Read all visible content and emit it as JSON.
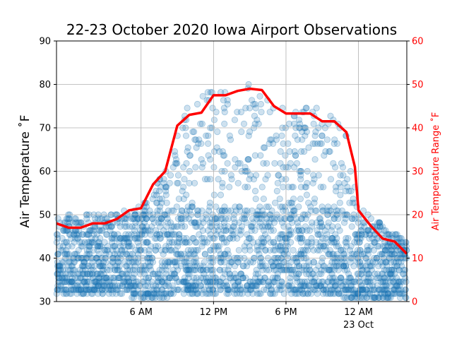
{
  "chart_data": {
    "type": "scatter",
    "title": "22-23 October 2020 Iowa Airport Observations",
    "ylabel": "Air Temperature $^\\circ$F",
    "ylabel_display": "Air Temperature ˚F",
    "y2label": "Air Temperature Range ˚F",
    "ylim": [
      30,
      90
    ],
    "y2lim": [
      0,
      60
    ],
    "yticks": [
      30,
      40,
      50,
      60,
      70,
      80,
      90
    ],
    "y2ticks": [
      0,
      10,
      20,
      30,
      40,
      50,
      60
    ],
    "xlim_hours": [
      0,
      29
    ],
    "xticks": [
      {
        "hour": 7,
        "label": "6 AM"
      },
      {
        "hour": 13,
        "label": "12 PM"
      },
      {
        "hour": 19,
        "label": "6 PM"
      },
      {
        "hour": 25,
        "label": "12 AM",
        "sublabel": "23 Oct"
      }
    ],
    "grid": true,
    "colors": {
      "scatter": "#1f77b4",
      "range_line": "#ff0000",
      "y2_axis": "#ff0000"
    },
    "range_series": {
      "name": "Air Temperature Range",
      "x": [
        0,
        1,
        2,
        3,
        4,
        5,
        6,
        7,
        8,
        9,
        10,
        11,
        12,
        13,
        14,
        15,
        16,
        17,
        18,
        19,
        20,
        21,
        22,
        23,
        24,
        24.7,
        25,
        26,
        27,
        28,
        29
      ],
      "values": [
        18,
        17,
        17,
        18,
        18,
        19,
        21,
        21.5,
        27,
        30,
        40.5,
        43,
        43.5,
        47.5,
        47.5,
        48.5,
        49,
        48.7,
        45,
        43.3,
        43.3,
        43.3,
        41.5,
        41.5,
        39,
        31,
        21,
        17.5,
        14.5,
        13.8,
        11
      ]
    },
    "scatter_envelope": {
      "x": [
        0,
        1,
        2,
        3,
        4,
        5,
        6,
        7,
        8,
        9,
        10,
        11,
        12,
        13,
        14,
        15,
        16,
        17,
        18,
        19,
        20,
        21,
        22,
        23,
        24,
        25,
        26,
        27,
        28,
        29
      ],
      "min": [
        32,
        32,
        32,
        32,
        32,
        32,
        31,
        31,
        31,
        31,
        32,
        32,
        32,
        32,
        32,
        32,
        32,
        32,
        32,
        32,
        32,
        32,
        32,
        32,
        31,
        31,
        31,
        31,
        31,
        31
      ],
      "max": [
        50,
        50,
        50,
        50,
        50,
        50,
        52,
        52,
        55,
        62,
        70,
        75,
        79,
        80,
        80,
        80,
        80,
        78,
        76,
        75,
        75,
        75,
        74,
        73,
        68,
        52,
        50,
        48,
        46,
        44
      ]
    }
  }
}
